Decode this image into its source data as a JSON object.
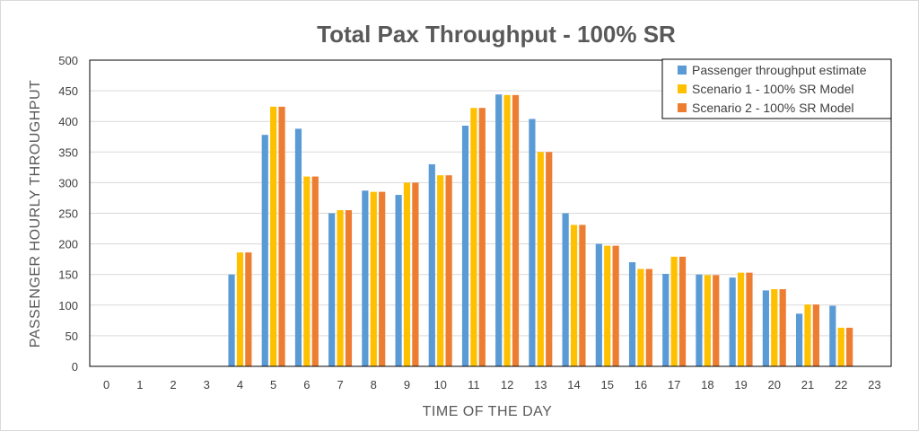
{
  "chart_data": {
    "type": "bar",
    "title": "Total Pax Throughput - 100% SR",
    "xlabel": "TIME OF THE DAY",
    "ylabel": "PASSENGER HOURLY THROUGHPUT",
    "categories": [
      "0",
      "1",
      "2",
      "3",
      "4",
      "5",
      "6",
      "7",
      "8",
      "9",
      "10",
      "11",
      "12",
      "13",
      "14",
      "15",
      "16",
      "17",
      "18",
      "19",
      "20",
      "21",
      "22",
      "23"
    ],
    "yticks": [
      "0",
      "50",
      "100",
      "150",
      "200",
      "250",
      "300",
      "350",
      "400",
      "450",
      "500"
    ],
    "ylim": [
      0,
      500
    ],
    "grid": true,
    "legend_position": "top-right",
    "series": [
      {
        "name": "Passenger throughput estimate",
        "color": "#5b9bd5",
        "values": [
          0,
          0,
          0,
          0,
          150,
          378,
          388,
          250,
          287,
          280,
          330,
          393,
          444,
          404,
          250,
          200,
          170,
          151,
          150,
          145,
          124,
          86,
          99,
          0
        ]
      },
      {
        "name": "Scenario 1 - 100% SR Model",
        "color": "#ffc000",
        "values": [
          0,
          0,
          0,
          0,
          186,
          424,
          310,
          255,
          285,
          300,
          312,
          422,
          443,
          350,
          231,
          197,
          159,
          179,
          149,
          153,
          126,
          101,
          63,
          0
        ]
      },
      {
        "name": "Scenario 2 - 100% SR Model",
        "color": "#ed7d31",
        "values": [
          0,
          0,
          0,
          0,
          186,
          424,
          310,
          255,
          285,
          300,
          312,
          422,
          443,
          350,
          231,
          197,
          159,
          179,
          149,
          153,
          126,
          101,
          63,
          0
        ]
      }
    ]
  }
}
